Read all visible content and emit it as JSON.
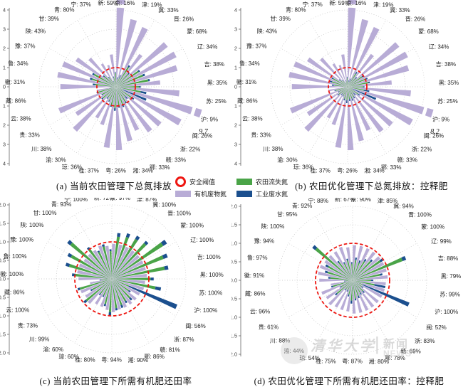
{
  "colors": {
    "organic": "#b8acd6",
    "farm": "#4aa448",
    "industrial": "#1b4f8e",
    "threshold": "#ee1611",
    "grid": "#c4c4c4",
    "axis_text": "#444444",
    "label_text": "#222222"
  },
  "legend": {
    "items": [
      {
        "label": "安全阈值",
        "type": "ring",
        "color": "#ee1611"
      },
      {
        "label": "农田流失氮",
        "type": "swatch",
        "color": "#4aa448"
      },
      {
        "label": "有机废物氮",
        "type": "swatch",
        "color": "#b8acd6"
      },
      {
        "label": "工业废水氮",
        "type": "swatch",
        "color": "#1b4f8e"
      }
    ]
  },
  "watermark": {
    "cn": "清华大学",
    "divider": "|",
    "news_cn": "新闻",
    "news_en": "NEWS"
  },
  "chart_data": [
    {
      "id": "a",
      "type": "polar-bar",
      "title": "(a) 当前农田管理下总氮排放",
      "r_max": 4,
      "r_step": 1,
      "threshold_r": 1,
      "r_tick_labels": [
        "4",
        "3",
        "2",
        "1",
        "0",
        "1",
        "2",
        "3",
        "4"
      ],
      "annotation": {
        "text": "9.7",
        "province_index": 9
      },
      "categories": [
        "京",
        "津",
        "冀",
        "晋",
        "蒙",
        "辽",
        "吉",
        "黑",
        "苏",
        "沪",
        "闽",
        "浙",
        "赣",
        "鄂",
        "湘",
        "粤",
        "桂",
        "琼",
        "渝",
        "川",
        "贵",
        "云",
        "藏",
        "徽",
        "鲁",
        "豫",
        "陕",
        "甘",
        "青",
        "宁",
        "新"
      ],
      "label_values_pct": [
        16,
        19,
        33,
        26,
        68,
        34,
        38,
        35,
        25,
        9,
        26,
        22,
        33,
        33,
        34,
        26,
        37,
        36,
        30,
        38,
        33,
        38,
        86,
        31,
        34,
        37,
        43,
        39,
        80,
        37,
        59
      ],
      "series": [
        {
          "name": "有机废物氮",
          "color_key": "organic",
          "values": [
            4.5,
            3.6,
            3.4,
            2.1,
            3.4,
            3.5,
            3.3,
            2.3,
            3.3,
            9.7,
            3.8,
            3.0,
            2.9,
            2.5,
            2.9,
            3.3,
            3.2,
            2.1,
            1.9,
            3.1,
            2.5,
            3.2,
            1.0,
            2.9,
            3.1,
            3.0,
            2.5,
            2.0,
            1.4,
            1.2,
            1.7
          ]
        },
        {
          "name": "农田流失氮",
          "color_key": "farm",
          "values": [
            0.4,
            0.5,
            1.2,
            0.9,
            1.4,
            1.5,
            1.7,
            1.2,
            1.3,
            0.4,
            1.0,
            0.7,
            0.9,
            1.0,
            1.0,
            1.1,
            1.0,
            0.8,
            0.7,
            0.9,
            0.8,
            1.0,
            0.25,
            1.1,
            1.3,
            1.3,
            0.8,
            0.6,
            0.3,
            0.5,
            0.7
          ]
        },
        {
          "name": "工业废水氮",
          "color_key": "industrial",
          "values": [
            0.1,
            0.15,
            0.1,
            0.08,
            0.08,
            0.12,
            0.08,
            0.08,
            0.3,
            1.3,
            0.12,
            0.15,
            0.1,
            0.12,
            0.1,
            0.15,
            0.08,
            0.06,
            0.08,
            0.08,
            0.06,
            0.06,
            0.03,
            0.12,
            0.12,
            0.1,
            0.08,
            0.05,
            0.03,
            0.05,
            0.06
          ]
        }
      ]
    },
    {
      "id": "b",
      "type": "polar-bar",
      "title": "(b) 农田优化管理下总氮排放：控释肥",
      "r_max": 4,
      "r_step": 1,
      "threshold_r": 1,
      "r_tick_labels": [
        "4",
        "3",
        "2",
        "1",
        "0",
        "1",
        "2",
        "3",
        "4"
      ],
      "annotation": {
        "text": "8.2",
        "province_index": 9
      },
      "categories": [
        "京",
        "津",
        "冀",
        "晋",
        "蒙",
        "辽",
        "吉",
        "黑",
        "苏",
        "沪",
        "闽",
        "浙",
        "赣",
        "鄂",
        "湘",
        "粤",
        "桂",
        "琼",
        "渝",
        "川",
        "贵",
        "云",
        "藏",
        "徽",
        "鲁",
        "豫",
        "陕",
        "甘",
        "青",
        "宁",
        "新"
      ],
      "label_values_pct": [
        16,
        19,
        33,
        26,
        68,
        34,
        38,
        35,
        25,
        9,
        26,
        22,
        33,
        33,
        34,
        26,
        37,
        36,
        30,
        38,
        33,
        38,
        86,
        31,
        34,
        37,
        43,
        39,
        80,
        37,
        59
      ],
      "series": [
        {
          "name": "有机废物氮",
          "color_key": "organic",
          "values": [
            4.5,
            3.6,
            3.4,
            2.1,
            3.4,
            3.5,
            3.3,
            2.3,
            3.3,
            8.2,
            3.8,
            3.0,
            2.9,
            2.5,
            2.9,
            3.3,
            3.2,
            2.1,
            1.9,
            3.1,
            2.5,
            3.2,
            1.0,
            2.9,
            3.1,
            3.0,
            2.5,
            2.0,
            1.4,
            1.2,
            1.7
          ]
        },
        {
          "name": "农田流失氮",
          "color_key": "farm",
          "values": [
            0.25,
            0.3,
            0.8,
            0.6,
            0.9,
            1.0,
            1.1,
            0.8,
            0.85,
            0.3,
            0.65,
            0.45,
            0.6,
            0.65,
            0.65,
            0.7,
            0.65,
            0.5,
            0.45,
            0.6,
            0.5,
            0.65,
            0.15,
            0.7,
            0.85,
            0.85,
            0.5,
            0.4,
            0.2,
            0.3,
            0.45
          ]
        },
        {
          "name": "工业废水氮",
          "color_key": "industrial",
          "values": [
            0.1,
            0.15,
            0.1,
            0.08,
            0.08,
            0.12,
            0.08,
            0.08,
            0.3,
            1.3,
            0.12,
            0.15,
            0.1,
            0.12,
            0.1,
            0.15,
            0.08,
            0.06,
            0.08,
            0.08,
            0.06,
            0.06,
            0.03,
            0.12,
            0.12,
            0.1,
            0.08,
            0.05,
            0.03,
            0.05,
            0.06
          ]
        }
      ]
    },
    {
      "id": "c",
      "type": "polar-bar",
      "title": "(c) 当前农田管理下所需有机肥还田率",
      "r_max": 2,
      "r_step": 0.5,
      "threshold_r": 1,
      "annotation": null,
      "r_tick_labels": [
        "2.0",
        "1.5",
        "1.0",
        "0.5",
        "0.0",
        "0.5",
        "1.0",
        "1.5",
        "2.0"
      ],
      "categories": [
        "京",
        "津",
        "冀",
        "晋",
        "蒙",
        "辽",
        "吉",
        "黑",
        "苏",
        "沪",
        "闽",
        "浙",
        "赣",
        "鄂",
        "湘",
        "粤",
        "桂",
        "琼",
        "渝",
        "川",
        "贵",
        "云",
        "藏",
        "徽",
        "鲁",
        "豫",
        "陕",
        "甘",
        "青",
        "宁",
        "新"
      ],
      "label_values_pct": [
        97,
        87,
        100,
        100,
        100,
        100,
        100,
        100,
        100,
        100,
        56,
        87,
        81,
        86,
        90,
        94,
        80,
        60,
        60,
        99,
        73,
        100,
        86,
        100,
        100,
        100,
        100,
        100,
        93,
        100,
        72
      ],
      "series": [
        {
          "name": "有机废物氮",
          "color_key": "organic",
          "values": [
            0.95,
            0.95,
            0.95,
            0.95,
            0.95,
            0.95,
            0.95,
            0.95,
            0.9,
            0.9,
            0.85,
            0.85,
            0.85,
            0.85,
            0.85,
            0.9,
            0.85,
            0.8,
            0.8,
            0.9,
            0.85,
            0.9,
            0.6,
            0.9,
            0.95,
            0.95,
            0.9,
            0.9,
            0.9,
            0.95,
            0.9
          ]
        },
        {
          "name": "农田流失氮",
          "color_key": "farm",
          "values": [
            1.15,
            1.2,
            1.25,
            1.3,
            1.65,
            1.5,
            1.45,
            1.05,
            1.2,
            0.5,
            0.55,
            0.7,
            0.7,
            0.75,
            0.8,
            0.9,
            0.7,
            0.5,
            0.5,
            0.9,
            0.6,
            0.9,
            0.3,
            1.0,
            1.2,
            1.25,
            1.45,
            1.0,
            0.8,
            0.9,
            0.75
          ]
        },
        {
          "name": "工业废水氮",
          "color_key": "industrial",
          "values": [
            0.1,
            0.1,
            0.1,
            0.08,
            0.12,
            0.12,
            0.1,
            0.08,
            0.15,
            1.4,
            0.06,
            0.08,
            0.06,
            0.08,
            0.06,
            0.1,
            0.06,
            0.04,
            0.05,
            0.08,
            0.05,
            0.06,
            0.03,
            0.08,
            0.1,
            0.1,
            0.1,
            0.06,
            0.04,
            0.06,
            0.05
          ]
        }
      ]
    },
    {
      "id": "d",
      "type": "polar-bar",
      "title": "(d) 农田优化管理下所需有机肥还田率：控释肥",
      "r_max": 2,
      "r_step": 0.5,
      "threshold_r": 1,
      "annotation": null,
      "r_tick_labels": [
        "2.0",
        "1.5",
        "1.0",
        "0.5",
        "0.0",
        "0.5",
        "1.0",
        "1.5",
        "2.0"
      ],
      "categories": [
        "京",
        "津",
        "冀",
        "晋",
        "蒙",
        "辽",
        "吉",
        "黑",
        "苏",
        "沪",
        "闽",
        "浙",
        "赣",
        "鄂",
        "湘",
        "粤",
        "桂",
        "琼",
        "渝",
        "川",
        "贵",
        "云",
        "藏",
        "徽",
        "鲁",
        "豫",
        "陕",
        "甘",
        "青",
        "宁",
        "新"
      ],
      "label_values_pct": [
        90,
        85,
        94,
        100,
        100,
        99,
        88,
        79,
        99,
        100,
        52,
        83,
        69,
        78,
        80,
        87,
        75,
        54,
        44,
        88,
        61,
        96,
        86,
        91,
        97,
        94,
        100,
        95,
        92,
        88,
        67
      ],
      "series": [
        {
          "name": "有机废物氮",
          "color_key": "organic",
          "values": [
            0.95,
            0.95,
            0.95,
            0.95,
            0.95,
            0.95,
            0.95,
            0.95,
            0.9,
            0.9,
            0.9,
            0.9,
            0.9,
            0.9,
            0.9,
            0.9,
            0.85,
            0.85,
            0.85,
            0.9,
            0.85,
            0.9,
            0.6,
            0.9,
            0.95,
            0.95,
            0.9,
            0.9,
            0.9,
            0.95,
            0.9
          ]
        },
        {
          "name": "农田流失氮",
          "color_key": "farm",
          "values": [
            0.55,
            0.5,
            0.6,
            0.7,
            0.9,
            1.45,
            0.75,
            0.5,
            0.6,
            0.3,
            0.3,
            0.4,
            0.4,
            0.45,
            0.5,
            0.55,
            0.4,
            0.3,
            0.3,
            0.55,
            0.35,
            0.55,
            0.2,
            0.6,
            0.7,
            0.75,
            1.3,
            0.6,
            0.5,
            0.55,
            0.45
          ]
        },
        {
          "name": "工业废水氮",
          "color_key": "industrial",
          "values": [
            0.07,
            0.07,
            0.07,
            0.06,
            0.08,
            0.1,
            0.07,
            0.06,
            0.3,
            1.35,
            0.05,
            0.06,
            0.05,
            0.06,
            0.05,
            0.08,
            0.05,
            0.04,
            0.04,
            0.06,
            0.04,
            0.05,
            0.03,
            0.06,
            0.08,
            0.08,
            0.1,
            0.05,
            0.04,
            0.05,
            0.04
          ]
        }
      ]
    }
  ]
}
